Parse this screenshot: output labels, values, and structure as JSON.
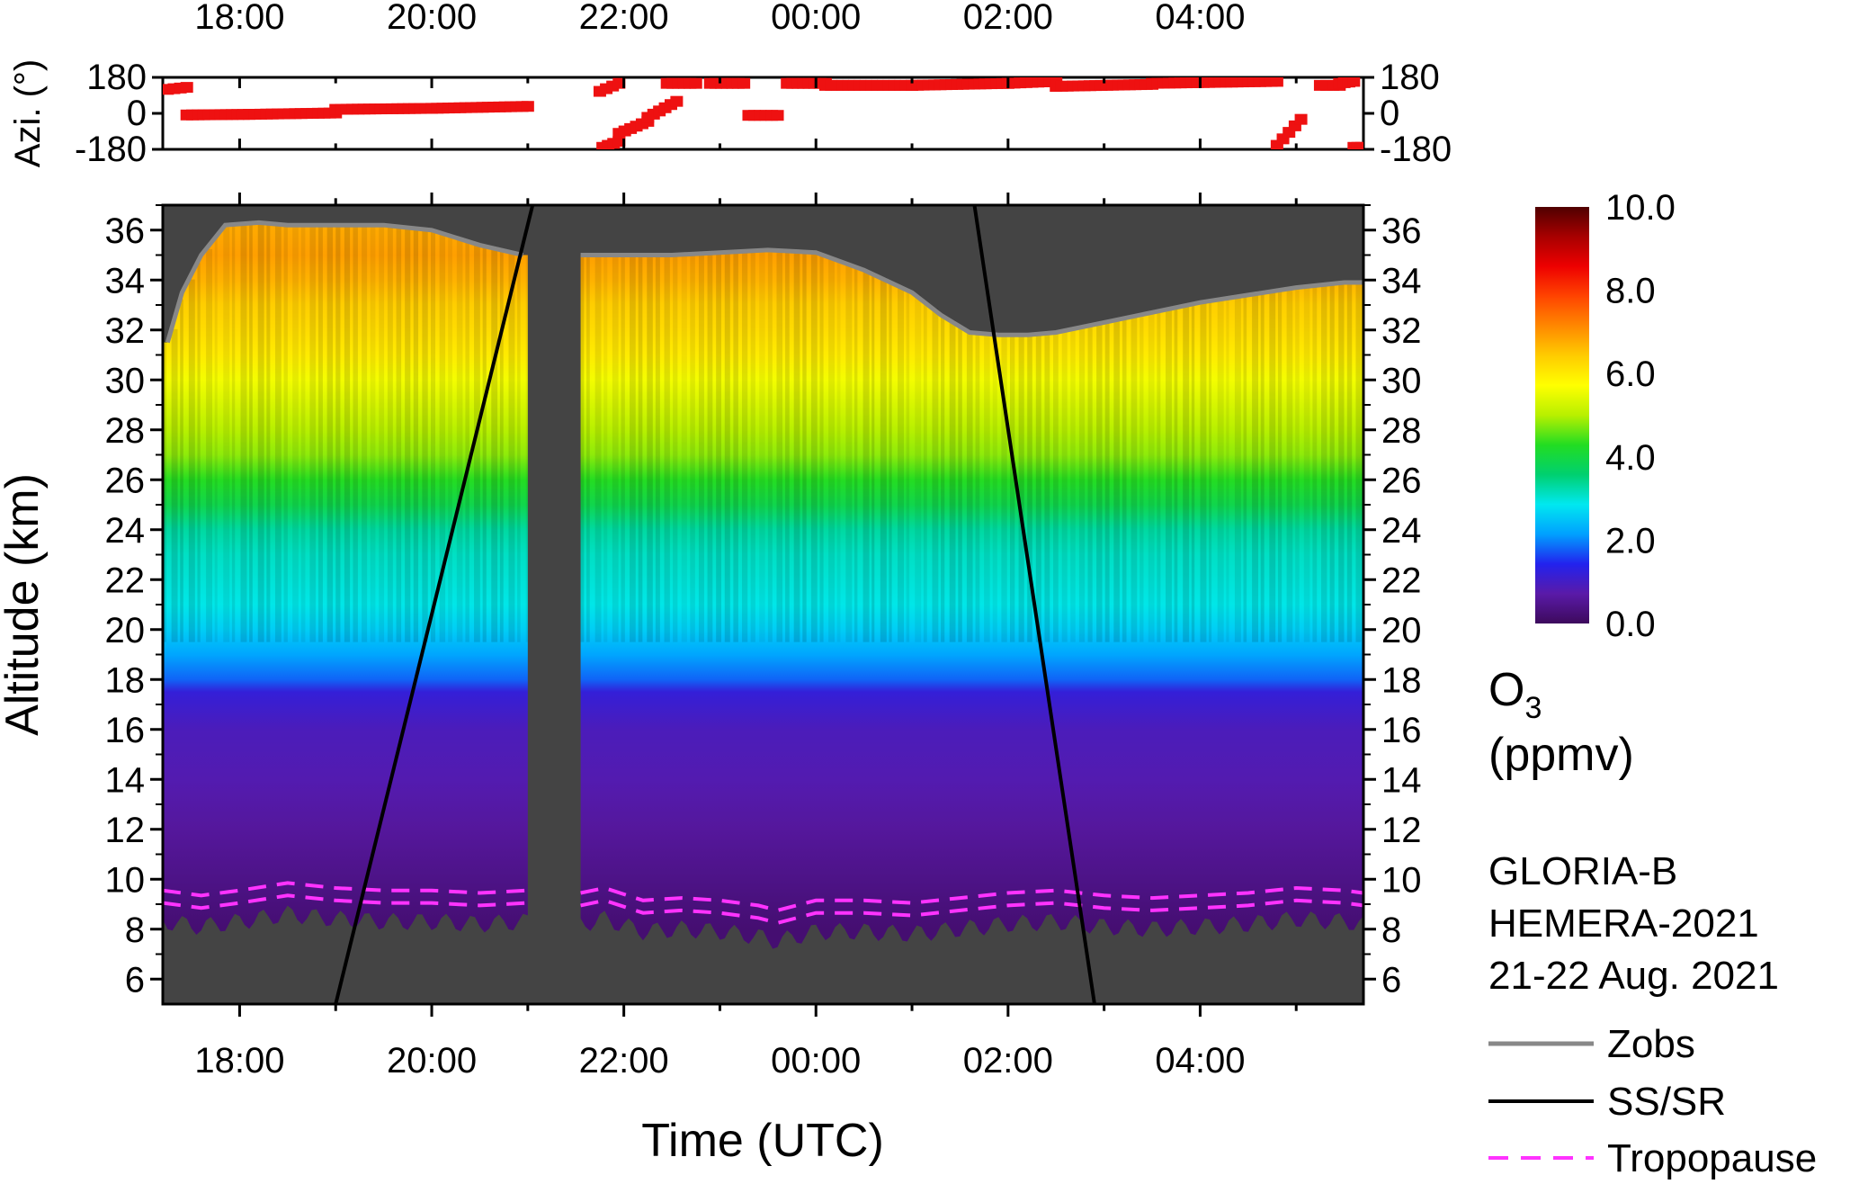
{
  "colors": {
    "background_missing": "#444444",
    "azimuth_marker": "#ee1111",
    "zobs_line": "#888888",
    "sunset_line": "#000000",
    "tropopause_line": "#ff33ff"
  },
  "chart_data": [
    {
      "type": "scatter",
      "panel": "azimuth",
      "ylabel": "Azi. (°)",
      "ylim": [
        -180,
        180
      ],
      "yticks": [
        "180",
        "0",
        "-180"
      ],
      "xlim_hours": [
        17.2,
        29.7
      ],
      "xticks": [
        "18:00",
        "20:00",
        "22:00",
        "00:00",
        "02:00",
        "04:00"
      ],
      "x_tick_hours": [
        18,
        20,
        22,
        24,
        26,
        28
      ],
      "series": [
        {
          "segments": [
            {
              "x": [
                17.25,
                17.45
              ],
              "y": [
                120,
                130
              ]
            },
            {
              "x": [
                17.45,
                18.1
              ],
              "y": [
                -8,
                -5
              ]
            },
            {
              "x": [
                18.1,
                19.0
              ],
              "y": [
                -5,
                2
              ]
            },
            {
              "x": [
                19.0,
                20.0
              ],
              "y": [
                20,
                25
              ]
            },
            {
              "x": [
                20.0,
                21.0
              ],
              "y": [
                25,
                35
              ]
            },
            {
              "x": [
                21.75,
                21.95
              ],
              "y": [
                110,
                150
              ]
            },
            {
              "x": [
                21.78,
                21.95
              ],
              "y": [
                -170,
                -140
              ]
            },
            {
              "x": [
                21.95,
                22.25
              ],
              "y": [
                -100,
                -40
              ]
            },
            {
              "x": [
                22.25,
                22.55
              ],
              "y": [
                -20,
                60
              ]
            },
            {
              "x": [
                22.45,
                22.75
              ],
              "y": [
                150,
                150
              ]
            },
            {
              "x": [
                22.9,
                23.25
              ],
              "y": [
                150,
                150
              ]
            },
            {
              "x": [
                23.3,
                23.6
              ],
              "y": [
                -10,
                -10
              ]
            },
            {
              "x": [
                23.7,
                24.1
              ],
              "y": [
                150,
                150
              ]
            },
            {
              "x": [
                24.1,
                25.0
              ],
              "y": [
                140,
                140
              ]
            },
            {
              "x": [
                25.0,
                26.0
              ],
              "y": [
                140,
                150
              ]
            },
            {
              "x": [
                26.0,
                26.5
              ],
              "y": [
                150,
                160
              ]
            },
            {
              "x": [
                26.5,
                27.5
              ],
              "y": [
                135,
                145
              ]
            },
            {
              "x": [
                27.5,
                28.8
              ],
              "y": [
                150,
                160
              ]
            },
            {
              "x": [
                28.8,
                29.05
              ],
              "y": [
                -160,
                -30
              ]
            },
            {
              "x": [
                29.25,
                29.45
              ],
              "y": [
                140,
                140
              ]
            },
            {
              "x": [
                29.45,
                29.6
              ],
              "y": [
                150,
                160
              ]
            },
            {
              "x": [
                29.6,
                29.68
              ],
              "y": [
                -170,
                -170
              ]
            }
          ]
        }
      ]
    },
    {
      "type": "heatmap",
      "panel": "ozone",
      "ylabel": "Altitude (km)",
      "xlabel": "Time (UTC)",
      "ylim": [
        5,
        37
      ],
      "yticks": [
        "6",
        "8",
        "10",
        "12",
        "14",
        "16",
        "18",
        "20",
        "22",
        "24",
        "26",
        "28",
        "30",
        "32",
        "34",
        "36"
      ],
      "xlim_hours": [
        17.2,
        29.7
      ],
      "xticks": [
        "18:00",
        "20:00",
        "22:00",
        "00:00",
        "02:00",
        "04:00"
      ],
      "x_tick_hours": [
        18,
        20,
        22,
        24,
        26,
        28
      ],
      "colorbar": {
        "label_line1": "O",
        "label_sub": "3",
        "label_line2": "(ppmv)",
        "range": [
          0,
          10
        ],
        "ticks": [
          "10.0",
          "8.0",
          "6.0",
          "4.0",
          "2.0",
          "0.0"
        ],
        "stops": [
          "#3d0a5c",
          "#5a1aa8",
          "#2222ee",
          "#00a0ff",
          "#00e8f0",
          "#00d070",
          "#22dd22",
          "#b8f000",
          "#ffff00",
          "#ffcc00",
          "#ff8800",
          "#ff4400",
          "#ee0000",
          "#a80000",
          "#500000"
        ]
      },
      "data_gaps_hours": [
        [
          21.0,
          21.55
        ]
      ],
      "zobs": {
        "name": "Zobs",
        "x": [
          17.25,
          17.4,
          17.6,
          17.85,
          18.2,
          18.5,
          19.0,
          19.5,
          20.0,
          20.5,
          20.95,
          21.55,
          22.0,
          22.5,
          23.0,
          23.5,
          24.0,
          24.5,
          25.0,
          25.3,
          25.6,
          25.9,
          26.2,
          26.5,
          27.0,
          27.5,
          28.0,
          28.5,
          29.0,
          29.5,
          29.7
        ],
        "y": [
          31.5,
          33.5,
          35.0,
          36.2,
          36.3,
          36.2,
          36.2,
          36.2,
          36.0,
          35.4,
          35.0,
          35.0,
          35.0,
          35.0,
          35.1,
          35.2,
          35.1,
          34.4,
          33.5,
          32.6,
          31.9,
          31.8,
          31.8,
          31.9,
          32.3,
          32.7,
          33.1,
          33.4,
          33.7,
          33.9,
          33.9
        ]
      },
      "sunset_sunrise": [
        {
          "name": "SS/SR",
          "x": [
            19.0,
            21.05
          ],
          "y": [
            5,
            37
          ]
        },
        {
          "name": "SS/SR",
          "x": [
            25.65,
            26.9
          ],
          "y": [
            37,
            5
          ]
        }
      ],
      "tropopause": {
        "name": "Tropopause",
        "x": [
          17.2,
          17.6,
          18.0,
          18.5,
          19.0,
          19.5,
          20.0,
          20.5,
          21.0,
          21.55,
          21.8,
          22.2,
          22.6,
          23.0,
          23.4,
          23.6,
          24.0,
          24.5,
          25.0,
          25.5,
          26.0,
          26.5,
          27.0,
          27.5,
          28.0,
          28.5,
          29.0,
          29.5,
          29.7
        ],
        "y": [
          9.3,
          9.1,
          9.3,
          9.6,
          9.4,
          9.3,
          9.3,
          9.2,
          9.3,
          9.2,
          9.4,
          8.9,
          9.0,
          8.9,
          8.7,
          8.5,
          8.9,
          8.9,
          8.8,
          9.0,
          9.2,
          9.3,
          9.1,
          9.0,
          9.1,
          9.2,
          9.4,
          9.3,
          9.2
        ]
      },
      "ozone_profile_ppmv": {
        "altitude_km": [
          8,
          10,
          12,
          14,
          16,
          17.5,
          18,
          19,
          20,
          21,
          22,
          23,
          24,
          25,
          26,
          27,
          28,
          29,
          30,
          31,
          32,
          33,
          34,
          35,
          36
        ],
        "typical_value": [
          0.2,
          0.4,
          0.6,
          0.8,
          0.9,
          1.2,
          1.8,
          2.2,
          2.6,
          2.9,
          3.0,
          3.1,
          3.3,
          3.9,
          4.3,
          4.8,
          5.0,
          5.3,
          5.6,
          6.0,
          6.2,
          6.4,
          6.7,
          6.9,
          6.8
        ]
      }
    }
  ],
  "legend": {
    "info": [
      "GLORIA-B",
      "HEMERA-2021",
      "21-22 Aug. 2021"
    ],
    "items": [
      {
        "label": "Zobs",
        "color": "#888888",
        "dash": "solid"
      },
      {
        "label": "SS/SR",
        "color": "#000000",
        "dash": "solid"
      },
      {
        "label": "Tropopause",
        "color": "#ff33ff",
        "dash": "dashed"
      }
    ]
  }
}
